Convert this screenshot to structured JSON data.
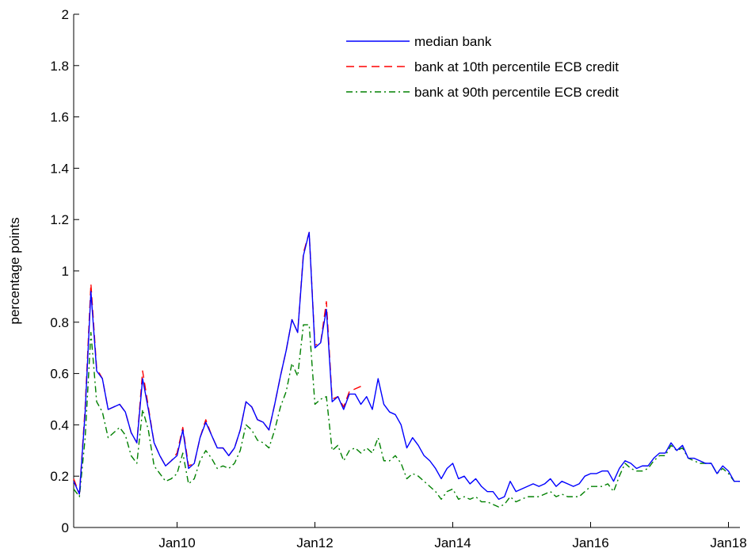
{
  "chart_data": {
    "type": "line",
    "title": "",
    "xlabel": "",
    "ylabel": "percentage points",
    "ylim": [
      0,
      2
    ],
    "xlim": [
      "2008-07",
      "2018-03"
    ],
    "yticks": [
      "0",
      "0.2",
      "0.4",
      "0.6",
      "0.8",
      "1",
      "1.2",
      "1.4",
      "1.6",
      "1.8",
      "2"
    ],
    "xticks": [
      {
        "label": "Jan10",
        "date": "2010-01"
      },
      {
        "label": "Jan12",
        "date": "2012-01"
      },
      {
        "label": "Jan14",
        "date": "2014-01"
      },
      {
        "label": "Jan16",
        "date": "2016-01"
      },
      {
        "label": "Jan18",
        "date": "2018-01"
      }
    ],
    "grid": false,
    "legend_position": "top-right",
    "series": [
      {
        "name": "median bank",
        "color": "#0000ff",
        "style": "solid",
        "points": [
          [
            "2008-07",
            0.18
          ],
          [
            "2008-08",
            0.13
          ],
          [
            "2008-09",
            0.45
          ],
          [
            "2008-10",
            0.92
          ],
          [
            "2008-11",
            0.61
          ],
          [
            "2008-12",
            0.58
          ],
          [
            "2009-01",
            0.46
          ],
          [
            "2009-02",
            0.47
          ],
          [
            "2009-03",
            0.48
          ],
          [
            "2009-04",
            0.45
          ],
          [
            "2009-05",
            0.37
          ],
          [
            "2009-06",
            0.33
          ],
          [
            "2009-07",
            0.58
          ],
          [
            "2009-08",
            0.46
          ],
          [
            "2009-09",
            0.33
          ],
          [
            "2009-10",
            0.28
          ],
          [
            "2009-11",
            0.24
          ],
          [
            "2009-12",
            0.26
          ],
          [
            "2010-01",
            0.28
          ],
          [
            "2010-02",
            0.38
          ],
          [
            "2010-03",
            0.23
          ],
          [
            "2010-04",
            0.25
          ],
          [
            "2010-05",
            0.35
          ],
          [
            "2010-06",
            0.41
          ],
          [
            "2010-07",
            0.36
          ],
          [
            "2010-08",
            0.31
          ],
          [
            "2010-09",
            0.31
          ],
          [
            "2010-10",
            0.28
          ],
          [
            "2010-11",
            0.31
          ],
          [
            "2010-12",
            0.38
          ],
          [
            "2011-01",
            0.49
          ],
          [
            "2011-02",
            0.47
          ],
          [
            "2011-03",
            0.42
          ],
          [
            "2011-04",
            0.41
          ],
          [
            "2011-05",
            0.38
          ],
          [
            "2011-06",
            0.48
          ],
          [
            "2011-07",
            0.59
          ],
          [
            "2011-08",
            0.69
          ],
          [
            "2011-09",
            0.81
          ],
          [
            "2011-10",
            0.76
          ],
          [
            "2011-11",
            1.06
          ],
          [
            "2011-12",
            1.15
          ],
          [
            "2012-01",
            0.7
          ],
          [
            "2012-02",
            0.72
          ],
          [
            "2012-03",
            0.85
          ],
          [
            "2012-04",
            0.49
          ],
          [
            "2012-05",
            0.51
          ],
          [
            "2012-06",
            0.46
          ],
          [
            "2012-07",
            0.52
          ],
          [
            "2012-08",
            0.52
          ],
          [
            "2012-09",
            0.48
          ],
          [
            "2012-10",
            0.51
          ],
          [
            "2012-11",
            0.46
          ],
          [
            "2012-12",
            0.58
          ],
          [
            "2013-01",
            0.48
          ],
          [
            "2013-02",
            0.45
          ],
          [
            "2013-03",
            0.44
          ],
          [
            "2013-04",
            0.4
          ],
          [
            "2013-05",
            0.31
          ],
          [
            "2013-06",
            0.35
          ],
          [
            "2013-07",
            0.32
          ],
          [
            "2013-08",
            0.28
          ],
          [
            "2013-09",
            0.26
          ],
          [
            "2013-10",
            0.23
          ],
          [
            "2013-11",
            0.19
          ],
          [
            "2013-12",
            0.23
          ],
          [
            "2014-01",
            0.25
          ],
          [
            "2014-02",
            0.19
          ],
          [
            "2014-03",
            0.2
          ],
          [
            "2014-04",
            0.17
          ],
          [
            "2014-05",
            0.19
          ],
          [
            "2014-06",
            0.16
          ],
          [
            "2014-07",
            0.14
          ],
          [
            "2014-08",
            0.14
          ],
          [
            "2014-09",
            0.11
          ],
          [
            "2014-10",
            0.12
          ],
          [
            "2014-11",
            0.18
          ],
          [
            "2014-12",
            0.14
          ],
          [
            "2015-01",
            0.15
          ],
          [
            "2015-02",
            0.16
          ],
          [
            "2015-03",
            0.17
          ],
          [
            "2015-04",
            0.16
          ],
          [
            "2015-05",
            0.17
          ],
          [
            "2015-06",
            0.19
          ],
          [
            "2015-07",
            0.16
          ],
          [
            "2015-08",
            0.18
          ],
          [
            "2015-09",
            0.17
          ],
          [
            "2015-10",
            0.16
          ],
          [
            "2015-11",
            0.17
          ],
          [
            "2015-12",
            0.2
          ],
          [
            "2016-01",
            0.21
          ],
          [
            "2016-02",
            0.21
          ],
          [
            "2016-03",
            0.22
          ],
          [
            "2016-04",
            0.22
          ],
          [
            "2016-05",
            0.18
          ],
          [
            "2016-06",
            0.23
          ],
          [
            "2016-07",
            0.26
          ],
          [
            "2016-08",
            0.25
          ],
          [
            "2016-09",
            0.23
          ],
          [
            "2016-10",
            0.24
          ],
          [
            "2016-11",
            0.24
          ],
          [
            "2016-12",
            0.27
          ],
          [
            "2017-01",
            0.29
          ],
          [
            "2017-02",
            0.29
          ],
          [
            "2017-03",
            0.33
          ],
          [
            "2017-04",
            0.3
          ],
          [
            "2017-05",
            0.32
          ],
          [
            "2017-06",
            0.27
          ],
          [
            "2017-07",
            0.27
          ],
          [
            "2017-08",
            0.26
          ],
          [
            "2017-09",
            0.25
          ],
          [
            "2017-10",
            0.25
          ],
          [
            "2017-11",
            0.21
          ],
          [
            "2017-12",
            0.24
          ],
          [
            "2018-01",
            0.22
          ],
          [
            "2018-02",
            0.18
          ],
          [
            "2018-03",
            0.18
          ]
        ]
      },
      {
        "name": "bank at 10th percentile ECB credit",
        "color": "#ff0000",
        "style": "dashed",
        "points": [
          [
            "2008-07",
            0.19
          ],
          [
            "2008-08",
            0.13
          ],
          [
            "2008-09",
            0.47
          ],
          [
            "2008-10",
            0.95
          ],
          [
            "2008-11",
            0.62
          ],
          [
            "2008-12",
            0.58
          ],
          [
            "2009-01",
            0.46
          ],
          [
            "2009-02",
            0.47
          ],
          [
            "2009-03",
            0.48
          ],
          [
            "2009-04",
            0.45
          ],
          [
            "2009-05",
            0.37
          ],
          [
            "2009-06",
            0.33
          ],
          [
            "2009-07",
            0.61
          ],
          [
            "2009-08",
            0.47
          ],
          [
            "2009-09",
            0.33
          ],
          [
            "2009-10",
            0.28
          ],
          [
            "2009-11",
            0.24
          ],
          [
            "2009-12",
            0.26
          ],
          [
            "2010-01",
            0.29
          ],
          [
            "2010-02",
            0.39
          ],
          [
            "2010-03",
            0.24
          ],
          [
            "2010-04",
            0.25
          ],
          [
            "2010-05",
            0.35
          ],
          [
            "2010-06",
            0.42
          ],
          [
            "2010-07",
            0.36
          ],
          [
            "2010-08",
            0.31
          ],
          [
            "2010-09",
            0.31
          ],
          [
            "2010-10",
            0.28
          ],
          [
            "2010-11",
            0.31
          ],
          [
            "2010-12",
            0.38
          ],
          [
            "2011-01",
            0.49
          ],
          [
            "2011-02",
            0.47
          ],
          [
            "2011-03",
            0.42
          ],
          [
            "2011-04",
            0.41
          ],
          [
            "2011-05",
            0.38
          ],
          [
            "2011-06",
            0.48
          ],
          [
            "2011-07",
            0.59
          ],
          [
            "2011-08",
            0.69
          ],
          [
            "2011-09",
            0.81
          ],
          [
            "2011-10",
            0.76
          ],
          [
            "2011-11",
            1.07
          ],
          [
            "2011-12",
            1.15
          ],
          [
            "2012-01",
            0.71
          ],
          [
            "2012-02",
            0.72
          ],
          [
            "2012-03",
            0.88
          ],
          [
            "2012-04",
            0.5
          ],
          [
            "2012-05",
            0.51
          ],
          [
            "2012-06",
            0.47
          ],
          [
            "2012-07",
            0.53
          ],
          [
            "2012-08",
            0.54
          ],
          [
            "2012-09",
            0.55
          ]
        ]
      },
      {
        "name": "bank at 90th percentile ECB credit",
        "color": "#008000",
        "style": "dashdot",
        "points": [
          [
            "2008-07",
            0.15
          ],
          [
            "2008-08",
            0.12
          ],
          [
            "2008-09",
            0.35
          ],
          [
            "2008-10",
            0.76
          ],
          [
            "2008-11",
            0.49
          ],
          [
            "2008-12",
            0.45
          ],
          [
            "2009-01",
            0.35
          ],
          [
            "2009-02",
            0.37
          ],
          [
            "2009-03",
            0.39
          ],
          [
            "2009-04",
            0.36
          ],
          [
            "2009-05",
            0.28
          ],
          [
            "2009-06",
            0.25
          ],
          [
            "2009-07",
            0.46
          ],
          [
            "2009-08",
            0.38
          ],
          [
            "2009-09",
            0.24
          ],
          [
            "2009-10",
            0.21
          ],
          [
            "2009-11",
            0.18
          ],
          [
            "2009-12",
            0.19
          ],
          [
            "2010-01",
            0.21
          ],
          [
            "2010-02",
            0.29
          ],
          [
            "2010-03",
            0.17
          ],
          [
            "2010-04",
            0.19
          ],
          [
            "2010-05",
            0.26
          ],
          [
            "2010-06",
            0.3
          ],
          [
            "2010-07",
            0.27
          ],
          [
            "2010-08",
            0.23
          ],
          [
            "2010-09",
            0.24
          ],
          [
            "2010-10",
            0.23
          ],
          [
            "2010-11",
            0.25
          ],
          [
            "2010-12",
            0.3
          ],
          [
            "2011-01",
            0.4
          ],
          [
            "2011-02",
            0.38
          ],
          [
            "2011-03",
            0.34
          ],
          [
            "2011-04",
            0.33
          ],
          [
            "2011-05",
            0.31
          ],
          [
            "2011-06",
            0.38
          ],
          [
            "2011-07",
            0.47
          ],
          [
            "2011-08",
            0.53
          ],
          [
            "2011-09",
            0.64
          ],
          [
            "2011-10",
            0.59
          ],
          [
            "2011-11",
            0.79
          ],
          [
            "2011-12",
            0.79
          ],
          [
            "2012-01",
            0.48
          ],
          [
            "2012-02",
            0.5
          ],
          [
            "2012-03",
            0.51
          ],
          [
            "2012-04",
            0.3
          ],
          [
            "2012-05",
            0.32
          ],
          [
            "2012-06",
            0.26
          ],
          [
            "2012-07",
            0.3
          ],
          [
            "2012-08",
            0.31
          ],
          [
            "2012-09",
            0.29
          ],
          [
            "2012-10",
            0.31
          ],
          [
            "2012-11",
            0.29
          ],
          [
            "2012-12",
            0.35
          ],
          [
            "2013-01",
            0.26
          ],
          [
            "2013-02",
            0.26
          ],
          [
            "2013-03",
            0.28
          ],
          [
            "2013-04",
            0.25
          ],
          [
            "2013-05",
            0.19
          ],
          [
            "2013-06",
            0.21
          ],
          [
            "2013-07",
            0.2
          ],
          [
            "2013-08",
            0.18
          ],
          [
            "2013-09",
            0.16
          ],
          [
            "2013-10",
            0.14
          ],
          [
            "2013-11",
            0.11
          ],
          [
            "2013-12",
            0.14
          ],
          [
            "2014-01",
            0.15
          ],
          [
            "2014-02",
            0.11
          ],
          [
            "2014-03",
            0.12
          ],
          [
            "2014-04",
            0.11
          ],
          [
            "2014-05",
            0.12
          ],
          [
            "2014-06",
            0.1
          ],
          [
            "2014-07",
            0.1
          ],
          [
            "2014-08",
            0.09
          ],
          [
            "2014-09",
            0.08
          ],
          [
            "2014-10",
            0.09
          ],
          [
            "2014-11",
            0.12
          ],
          [
            "2014-12",
            0.1
          ],
          [
            "2015-01",
            0.11
          ],
          [
            "2015-02",
            0.12
          ],
          [
            "2015-03",
            0.12
          ],
          [
            "2015-04",
            0.12
          ],
          [
            "2015-05",
            0.13
          ],
          [
            "2015-06",
            0.14
          ],
          [
            "2015-07",
            0.12
          ],
          [
            "2015-08",
            0.13
          ],
          [
            "2015-09",
            0.12
          ],
          [
            "2015-10",
            0.12
          ],
          [
            "2015-11",
            0.12
          ],
          [
            "2015-12",
            0.14
          ],
          [
            "2016-01",
            0.16
          ],
          [
            "2016-02",
            0.16
          ],
          [
            "2016-03",
            0.16
          ],
          [
            "2016-04",
            0.17
          ],
          [
            "2016-05",
            0.14
          ],
          [
            "2016-06",
            0.2
          ],
          [
            "2016-07",
            0.25
          ],
          [
            "2016-08",
            0.23
          ],
          [
            "2016-09",
            0.22
          ],
          [
            "2016-10",
            0.22
          ],
          [
            "2016-11",
            0.23
          ],
          [
            "2016-12",
            0.26
          ],
          [
            "2017-01",
            0.28
          ],
          [
            "2017-02",
            0.28
          ],
          [
            "2017-03",
            0.32
          ],
          [
            "2017-04",
            0.3
          ],
          [
            "2017-05",
            0.31
          ],
          [
            "2017-06",
            0.27
          ],
          [
            "2017-07",
            0.26
          ],
          [
            "2017-08",
            0.25
          ],
          [
            "2017-09",
            0.25
          ],
          [
            "2017-10",
            0.25
          ],
          [
            "2017-11",
            0.21
          ],
          [
            "2017-12",
            0.23
          ],
          [
            "2018-01",
            0.21
          ],
          [
            "2018-02",
            0.18
          ],
          [
            "2018-03",
            0.18
          ]
        ]
      }
    ]
  }
}
